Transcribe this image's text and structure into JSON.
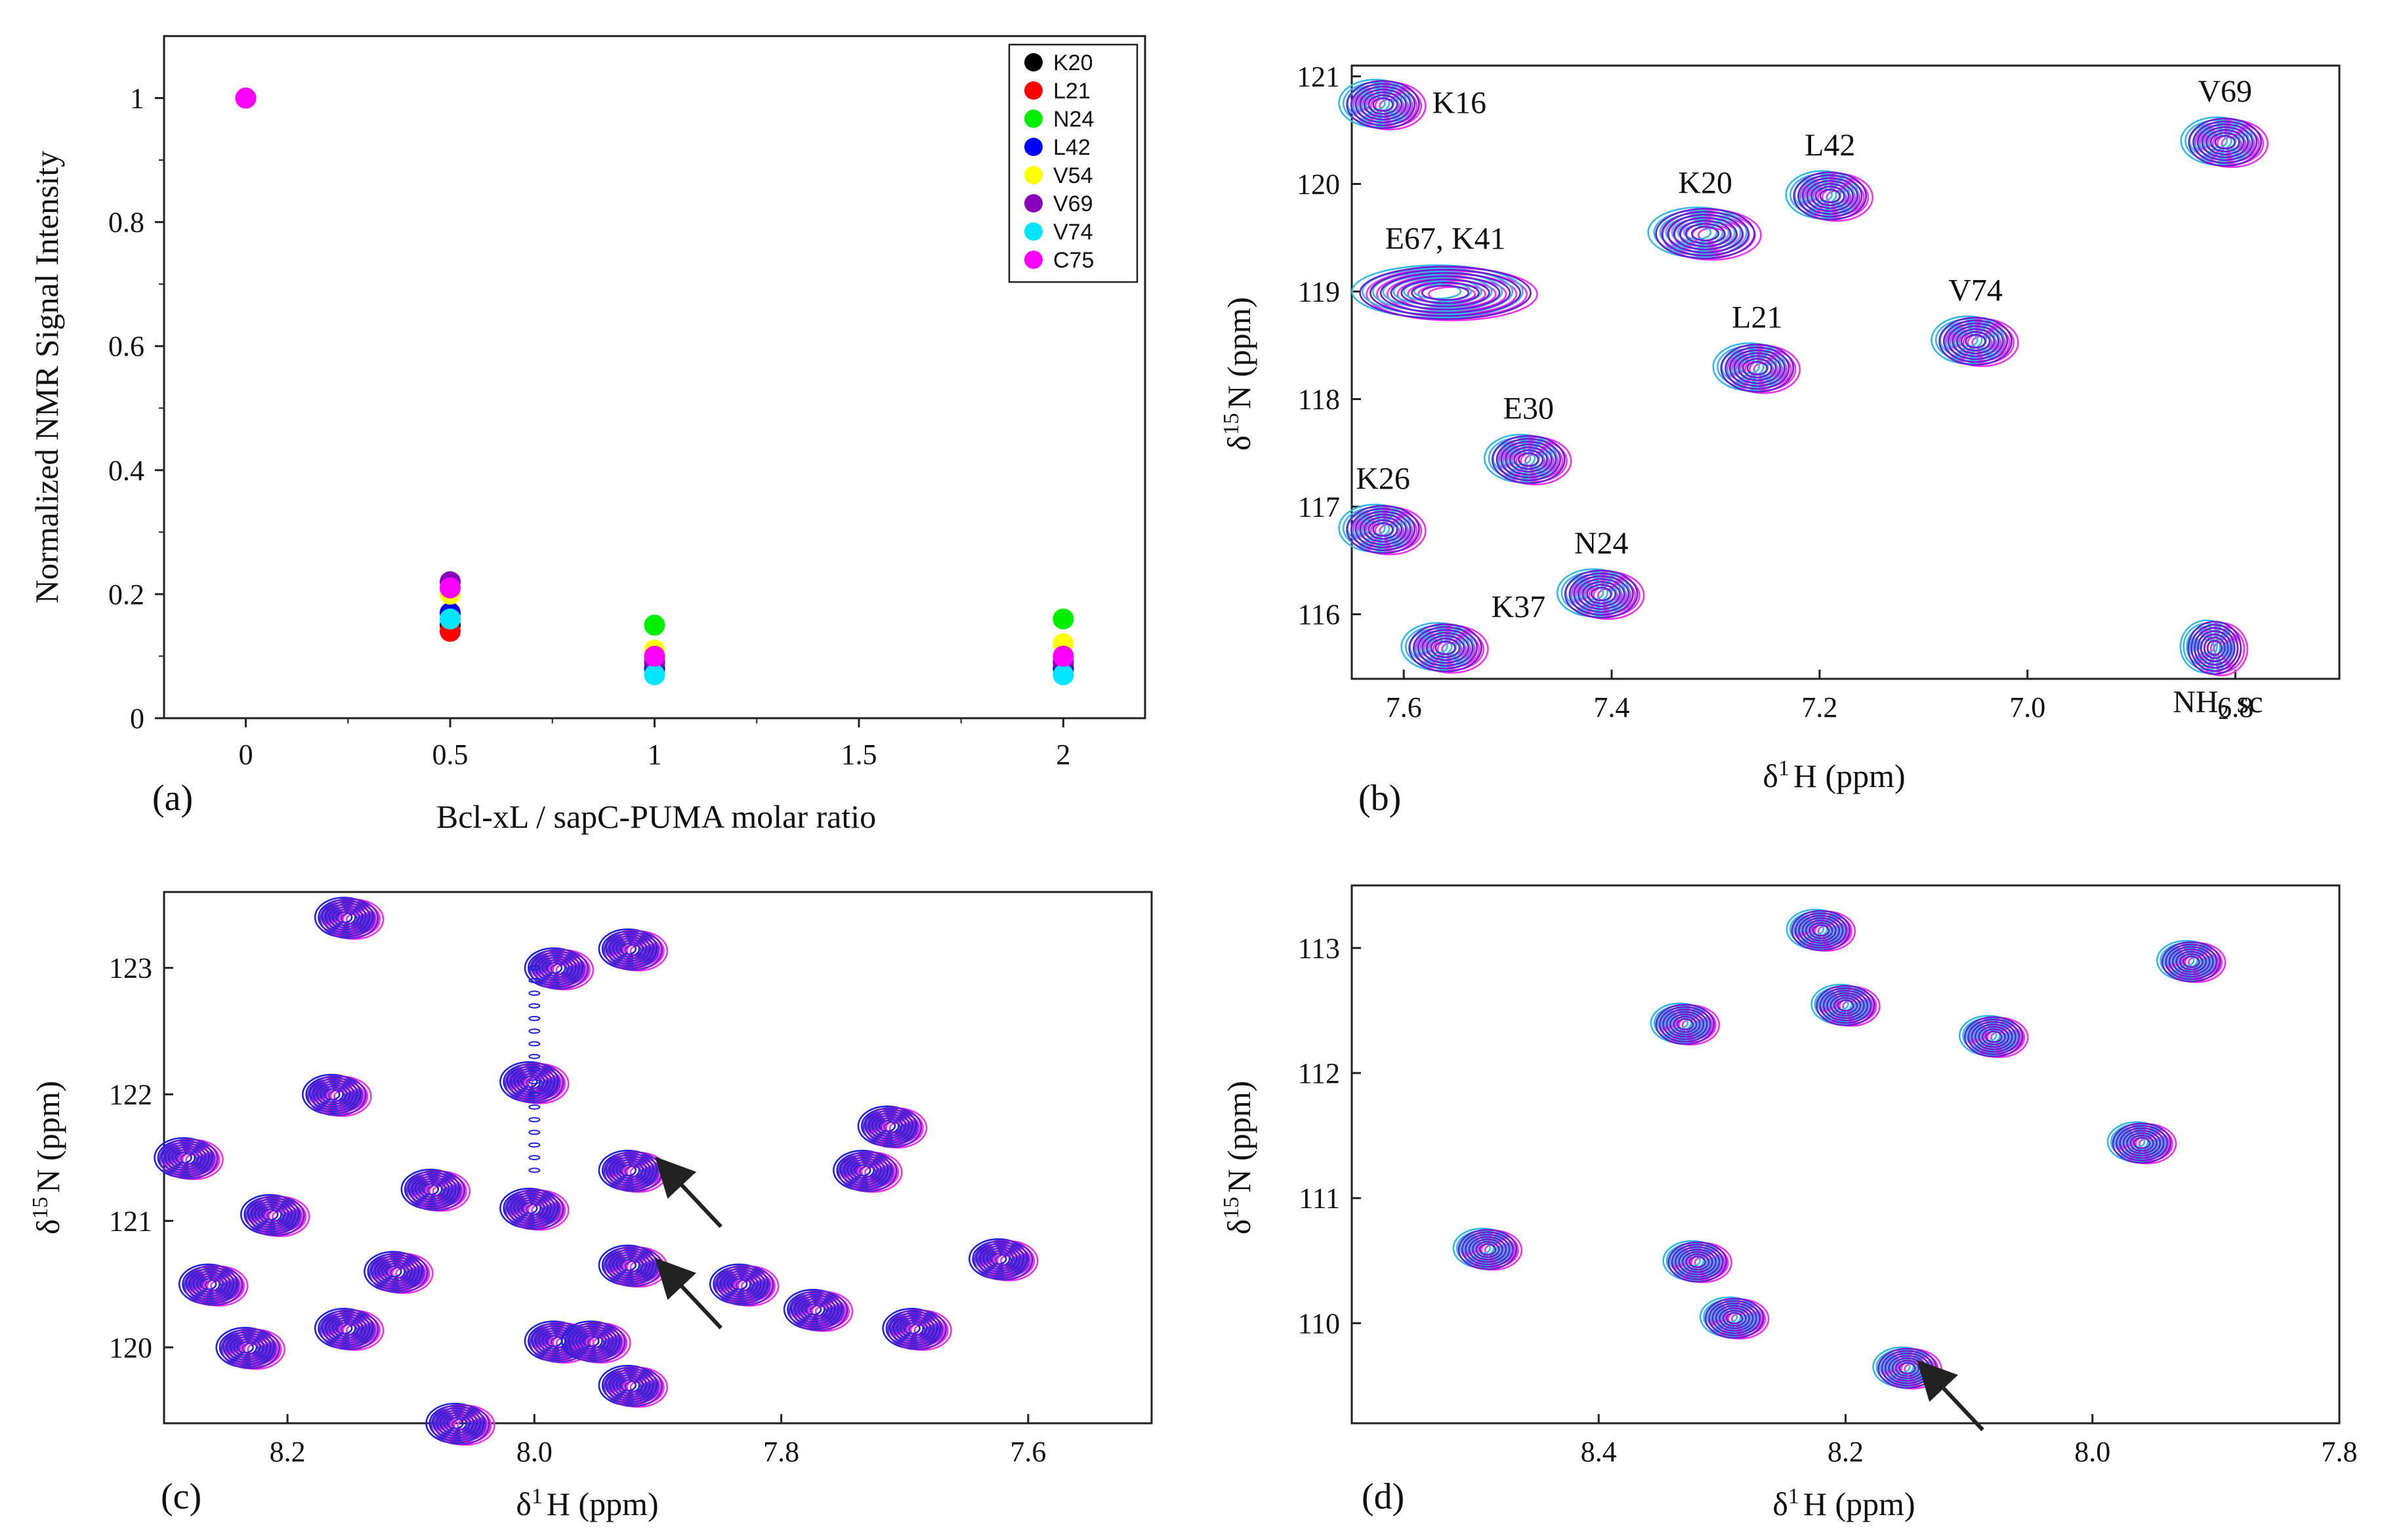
{
  "colors": {
    "K20": "#000000",
    "L21": "#ff0000",
    "N24": "#00ee00",
    "L42": "#0000ff",
    "V54": "#ffff00",
    "V69": "#8800bb",
    "V74": "#00e5ff",
    "C75": "#ff00ff",
    "cyan_spectrum": "#35b8e6",
    "magenta_spectrum": "#ee33ee",
    "purple_spectrum": "#6a1fd0",
    "blue_spectrum": "#2222dd",
    "arrow": "#222222"
  },
  "chart_data": [
    {
      "panel": "(a)",
      "type": "scatter",
      "xlabel": "Bcl-xL / sapC-PUMA molar ratio",
      "ylabel": "Normalized NMR Signal Intensity",
      "xlim": [
        -0.2,
        2.2
      ],
      "ylim": [
        0,
        1.1
      ],
      "xticks": [
        "0",
        "0.5",
        "1",
        "1.5",
        "2"
      ],
      "xtick_values": [
        0,
        0.5,
        1,
        1.5,
        2
      ],
      "yticks": [
        "0",
        "0.2",
        "0.4",
        "0.6",
        "0.8",
        "1"
      ],
      "ytick_values": [
        0,
        0.2,
        0.4,
        0.6,
        0.8,
        1
      ],
      "legend_position": "top-right",
      "series": [
        {
          "name": "K20",
          "x": [
            0,
            0.5,
            1,
            2
          ],
          "y": [
            1,
            0.15,
            0.08,
            0.08
          ]
        },
        {
          "name": "L21",
          "x": [
            0,
            0.5,
            1,
            2
          ],
          "y": [
            1,
            0.14,
            0.09,
            0.09
          ]
        },
        {
          "name": "N24",
          "x": [
            0,
            0.5,
            1,
            2
          ],
          "y": [
            1,
            0.16,
            0.15,
            0.16
          ]
        },
        {
          "name": "L42",
          "x": [
            0,
            0.5,
            1,
            2
          ],
          "y": [
            1,
            0.17,
            0.08,
            0.08
          ]
        },
        {
          "name": "V54",
          "x": [
            0,
            0.5,
            1,
            2
          ],
          "y": [
            1,
            0.2,
            0.11,
            0.12
          ]
        },
        {
          "name": "V69",
          "x": [
            0,
            0.5,
            1,
            2
          ],
          "y": [
            1,
            0.22,
            0.09,
            0.09
          ]
        },
        {
          "name": "V74",
          "x": [
            0,
            0.5,
            1,
            2
          ],
          "y": [
            1,
            0.16,
            0.07,
            0.07
          ]
        },
        {
          "name": "C75",
          "x": [
            0,
            0.5,
            1,
            2
          ],
          "y": [
            1,
            0.21,
            0.1,
            0.1
          ]
        }
      ]
    },
    {
      "panel": "(b)",
      "type": "scatter",
      "subtype": "2D NMR contour spectrum",
      "xlabel_pre": "δ",
      "xlabel_sup": "1",
      "xlabel_post": "H (ppm)",
      "ylabel_pre": "δ",
      "ylabel_sup": "15",
      "ylabel_post": "N (ppm)",
      "xlim": [
        7.65,
        6.7
      ],
      "ylim": [
        121.1,
        115.4
      ],
      "xticks": [
        "7.6",
        "7.4",
        "7.2",
        "7.0",
        "6.8"
      ],
      "xtick_values": [
        7.6,
        7.4,
        7.2,
        7.0,
        6.8
      ],
      "yticks": [
        "116",
        "117",
        "118",
        "119",
        "120",
        "121"
      ],
      "ytick_values": [
        116,
        117,
        118,
        119,
        120,
        121
      ],
      "peaks": [
        {
          "label": "K37",
          "h": 7.56,
          "n": 115.7
        },
        {
          "label": "N24",
          "h": 7.41,
          "n": 116.2
        },
        {
          "label": "K26",
          "h": 7.62,
          "n": 116.8
        },
        {
          "label": "E30",
          "h": 7.48,
          "n": 117.45
        },
        {
          "label": "L21",
          "h": 7.26,
          "n": 118.3
        },
        {
          "label": "V74",
          "h": 7.05,
          "n": 118.55
        },
        {
          "label": "E67, K41",
          "h": 7.56,
          "n": 119.0
        },
        {
          "label": "K20",
          "h": 7.31,
          "n": 119.55
        },
        {
          "label": "L42",
          "h": 7.19,
          "n": 119.9
        },
        {
          "label": "V69",
          "h": 6.81,
          "n": 120.4
        },
        {
          "label": "K16",
          "h": 7.62,
          "n": 120.75
        },
        {
          "label": "NH2 sc",
          "h": 6.82,
          "n": 115.7
        }
      ],
      "nh2_label_main": "NH",
      "nh2_label_sub": "2",
      "nh2_label_post": " sc"
    },
    {
      "panel": "(c)",
      "type": "scatter",
      "subtype": "2D NMR contour spectrum",
      "xlabel_pre": "δ",
      "xlabel_sup": "1",
      "xlabel_post": "H (ppm)",
      "ylabel_pre": "δ",
      "ylabel_sup": "15",
      "ylabel_post": "N (ppm)",
      "xlim": [
        8.3,
        7.5
      ],
      "ylim": [
        123.6,
        119.4
      ],
      "xticks": [
        "8.2",
        "8.0",
        "7.8",
        "7.6"
      ],
      "xtick_values": [
        8.2,
        8.0,
        7.8,
        7.6
      ],
      "yticks": [
        "120",
        "121",
        "122",
        "123"
      ],
      "ytick_values": [
        120,
        121,
        122,
        123
      ],
      "peaks": [
        {
          "h": 8.23,
          "n": 120.0
        },
        {
          "h": 8.26,
          "n": 120.5
        },
        {
          "h": 8.15,
          "n": 120.15
        },
        {
          "h": 8.11,
          "n": 120.6
        },
        {
          "h": 8.21,
          "n": 121.05
        },
        {
          "h": 8.08,
          "n": 121.25
        },
        {
          "h": 8.28,
          "n": 121.5
        },
        {
          "h": 8.16,
          "n": 122.0
        },
        {
          "h": 7.98,
          "n": 120.05
        },
        {
          "h": 7.95,
          "n": 120.05
        },
        {
          "h": 7.92,
          "n": 119.7
        },
        {
          "h": 7.92,
          "n": 120.65
        },
        {
          "h": 7.92,
          "n": 121.4
        },
        {
          "h": 8.0,
          "n": 121.1
        },
        {
          "h": 8.0,
          "n": 122.1
        },
        {
          "h": 7.98,
          "n": 123.0
        },
        {
          "h": 7.92,
          "n": 123.15
        },
        {
          "h": 8.15,
          "n": 123.4
        },
        {
          "h": 7.83,
          "n": 120.5
        },
        {
          "h": 7.77,
          "n": 120.3
        },
        {
          "h": 7.69,
          "n": 120.15
        },
        {
          "h": 7.62,
          "n": 120.7
        },
        {
          "h": 7.73,
          "n": 121.4
        },
        {
          "h": 7.71,
          "n": 121.75
        },
        {
          "h": 8.06,
          "n": 119.4
        }
      ],
      "arrows_to": [
        {
          "h": 7.91,
          "n": 120.75
        },
        {
          "h": 7.91,
          "n": 121.55
        }
      ]
    },
    {
      "panel": "(d)",
      "type": "scatter",
      "subtype": "2D NMR contour spectrum",
      "xlabel_pre": "δ",
      "xlabel_sup": "1",
      "xlabel_post": "H (ppm)",
      "ylabel_pre": "δ",
      "ylabel_sup": "15",
      "ylabel_post": "N (ppm)",
      "xlim": [
        8.6,
        7.8
      ],
      "ylim": [
        113.5,
        109.2
      ],
      "xticks": [
        "8.4",
        "8.2",
        "8.0",
        "7.8"
      ],
      "xtick_values": [
        8.4,
        8.2,
        8.0,
        7.8
      ],
      "yticks": [
        "110",
        "111",
        "112",
        "113"
      ],
      "ytick_values": [
        110,
        111,
        112,
        113
      ],
      "peaks": [
        {
          "h": 8.15,
          "n": 109.65
        },
        {
          "h": 8.29,
          "n": 110.05
        },
        {
          "h": 8.49,
          "n": 110.6
        },
        {
          "h": 8.32,
          "n": 110.5
        },
        {
          "h": 7.96,
          "n": 111.45
        },
        {
          "h": 8.33,
          "n": 112.4
        },
        {
          "h": 8.2,
          "n": 112.55
        },
        {
          "h": 8.08,
          "n": 112.3
        },
        {
          "h": 7.92,
          "n": 112.9
        },
        {
          "h": 8.22,
          "n": 113.15
        }
      ],
      "arrows_to": [
        {
          "h": 8.15,
          "n": 109.75
        }
      ]
    }
  ]
}
